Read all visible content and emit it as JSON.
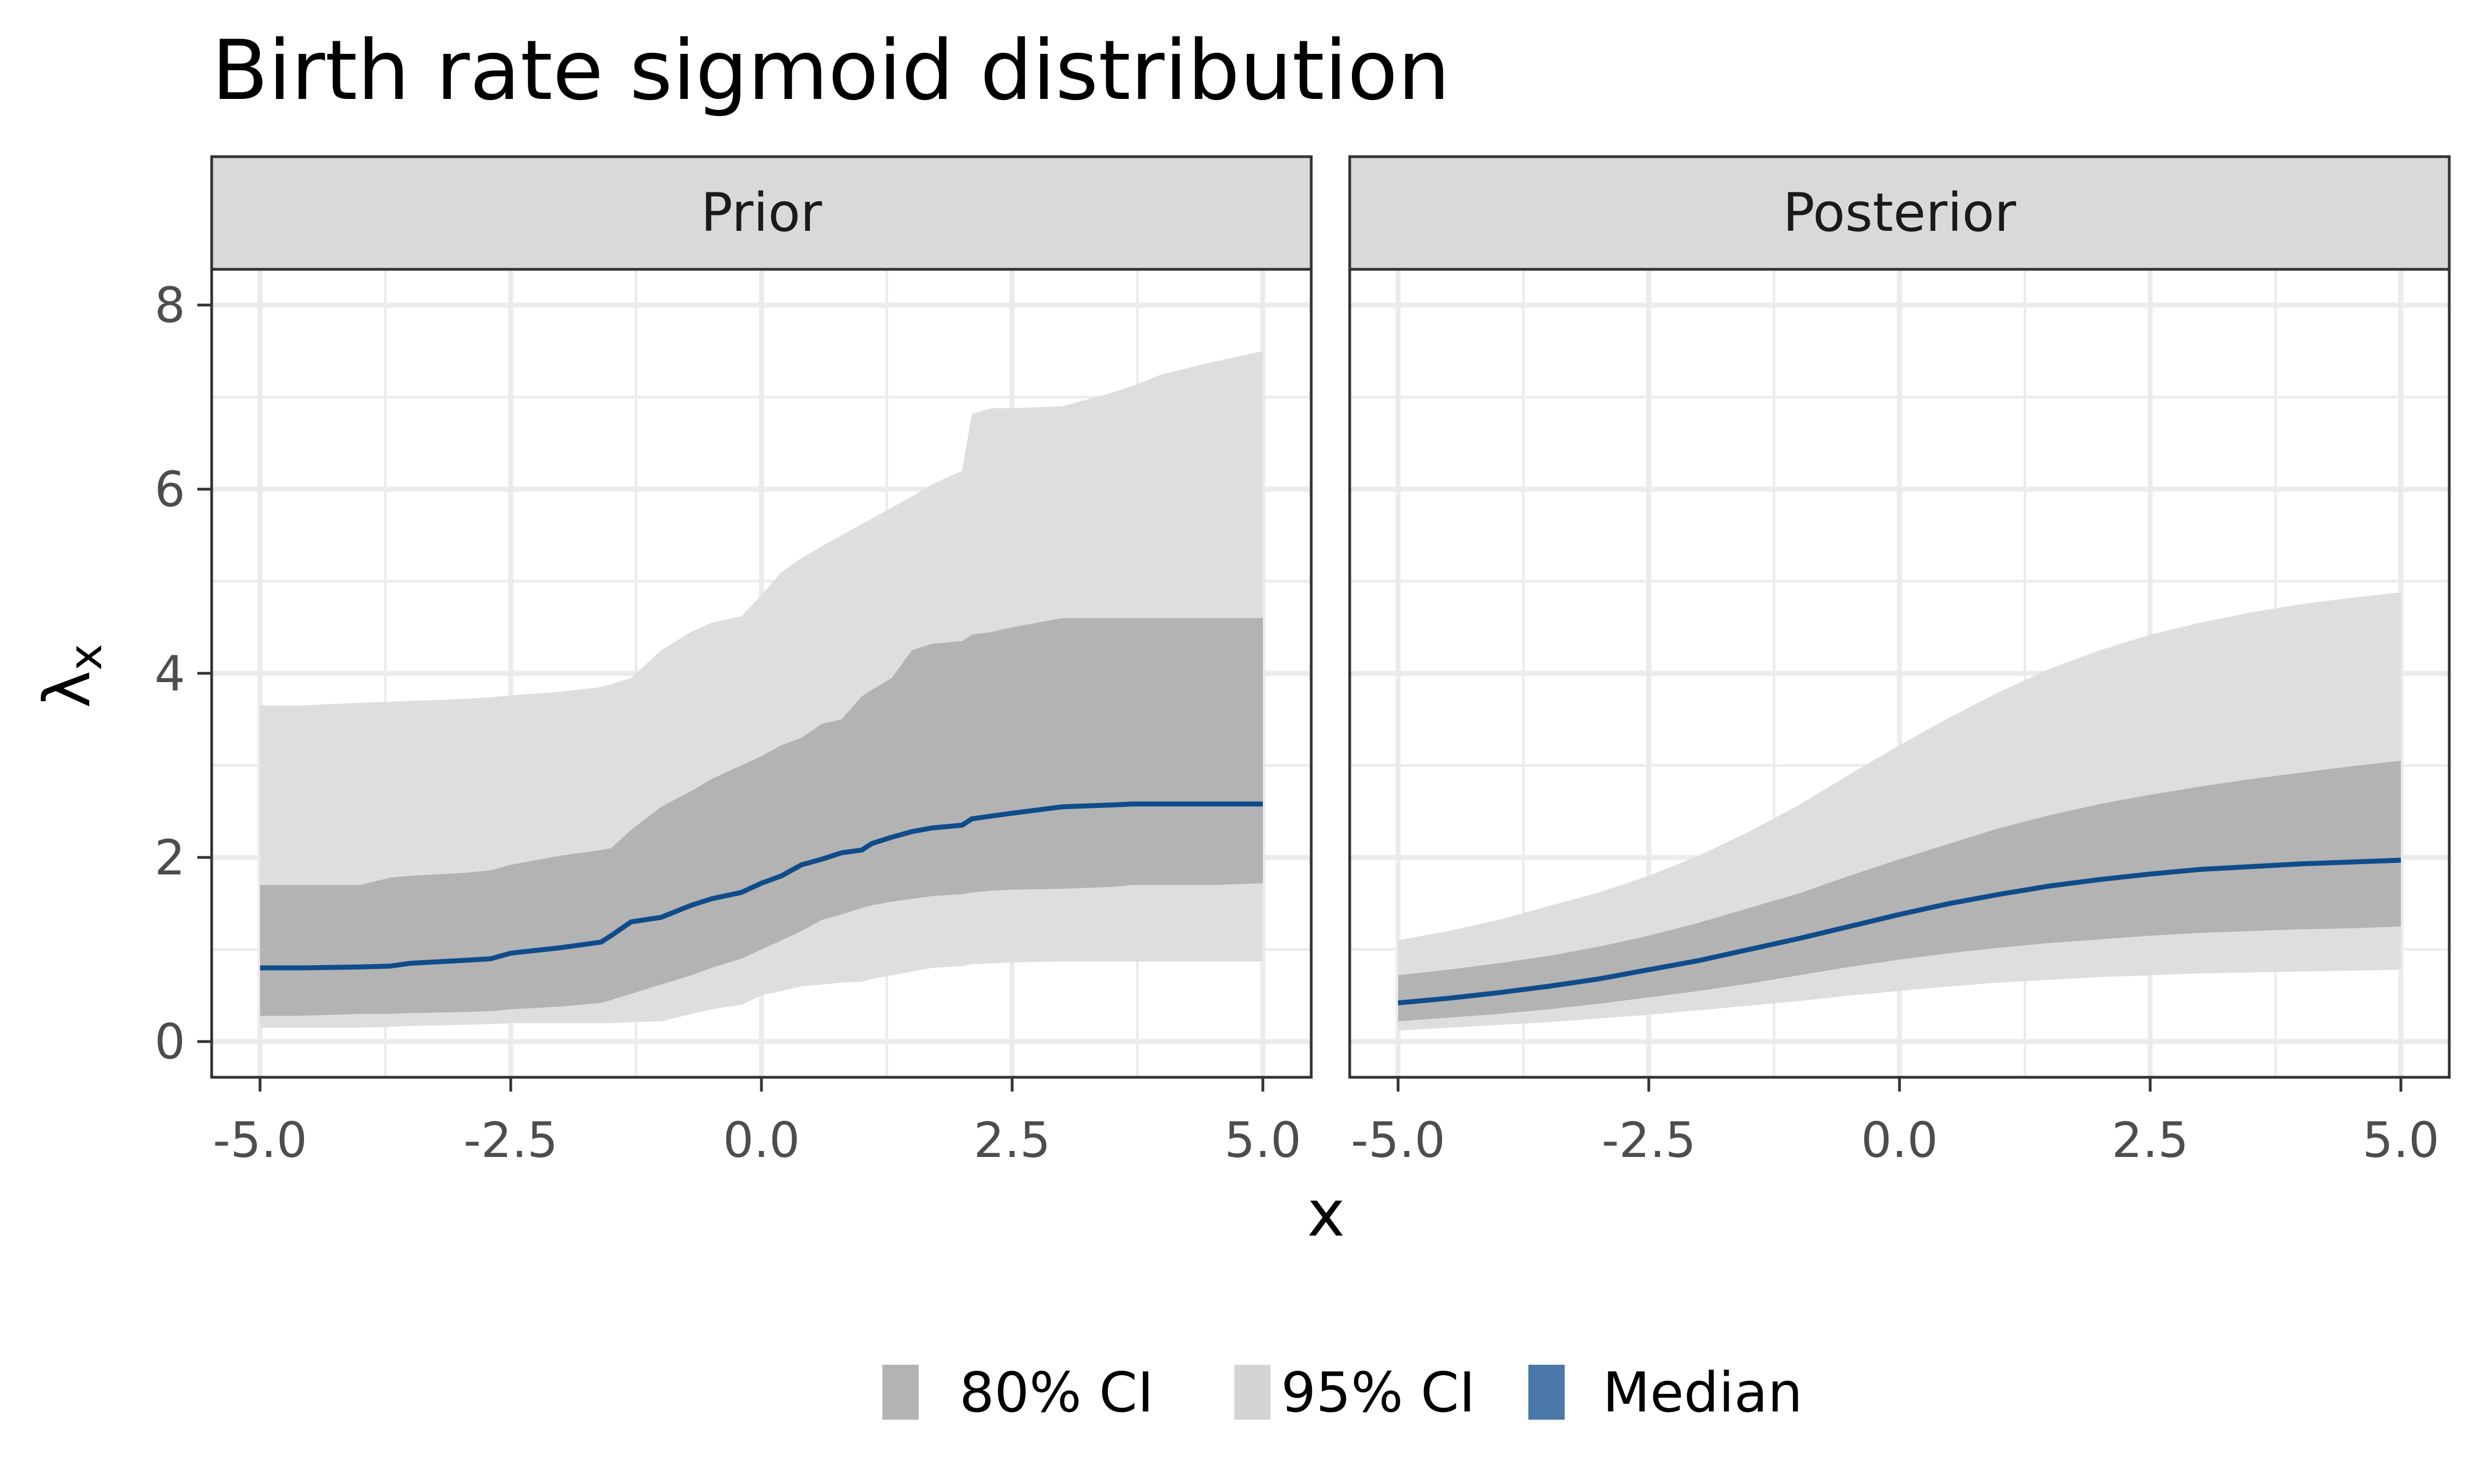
{
  "chart_data": {
    "type": "area",
    "title": "Birth rate sigmoid distribution",
    "xlabel": "x",
    "ylabel": "λ",
    "ylabel_subscript": "x",
    "xlim": [
      -5.0,
      5.0
    ],
    "ylim": [
      0,
      8
    ],
    "x_ticks": [
      -5.0,
      -2.5,
      0.0,
      2.5,
      5.0
    ],
    "x_tick_labels": [
      "-5.0",
      "-2.5",
      "0.0",
      "2.5",
      "5.0"
    ],
    "y_ticks": [
      0,
      2,
      4,
      6,
      8
    ],
    "y_tick_labels": [
      "0",
      "2",
      "4",
      "6",
      "8"
    ],
    "grid": true,
    "legend_position": "bottom",
    "legend": [
      {
        "label": "80% CI",
        "color": "#b3b3b3"
      },
      {
        "label": "95% CI",
        "color": "#d4d4d4"
      },
      {
        "label": "Median",
        "color": "#4a78a8"
      }
    ],
    "colors": {
      "ci80": "#b3b3b3",
      "ci95": "#dedede",
      "median": "#0f4c8a"
    },
    "panels": [
      {
        "name": "Prior",
        "x": [
          -5.0,
          -4.6,
          -4.0,
          -3.7,
          -3.5,
          -3.0,
          -2.7,
          -2.5,
          -2.0,
          -1.6,
          -1.5,
          -1.3,
          -1.0,
          -0.7,
          -0.5,
          -0.2,
          0.0,
          0.2,
          0.4,
          0.6,
          0.8,
          1.0,
          1.1,
          1.3,
          1.5,
          1.7,
          2.0,
          2.1,
          2.3,
          2.5,
          3.0,
          3.5,
          3.7,
          4.0,
          4.5,
          5.0
        ],
        "ci95_upper": [
          3.65,
          3.65,
          3.68,
          3.69,
          3.7,
          3.72,
          3.74,
          3.76,
          3.8,
          3.85,
          3.88,
          3.95,
          4.25,
          4.45,
          4.55,
          4.62,
          4.85,
          5.1,
          5.25,
          5.38,
          5.5,
          5.62,
          5.68,
          5.8,
          5.92,
          6.05,
          6.2,
          6.82,
          6.88,
          6.88,
          6.9,
          7.05,
          7.12,
          7.25,
          7.38,
          7.5
        ],
        "ci80_upper": [
          1.7,
          1.7,
          1.7,
          1.78,
          1.8,
          1.83,
          1.86,
          1.92,
          2.02,
          2.08,
          2.1,
          2.3,
          2.55,
          2.72,
          2.85,
          3.0,
          3.1,
          3.22,
          3.3,
          3.45,
          3.5,
          3.75,
          3.82,
          3.95,
          4.25,
          4.32,
          4.35,
          4.42,
          4.45,
          4.5,
          4.6,
          4.6,
          4.6,
          4.6,
          4.6,
          4.6
        ],
        "median": [
          0.8,
          0.8,
          0.81,
          0.82,
          0.85,
          0.88,
          0.9,
          0.96,
          1.02,
          1.08,
          1.15,
          1.3,
          1.35,
          1.48,
          1.55,
          1.62,
          1.72,
          1.8,
          1.92,
          1.98,
          2.05,
          2.08,
          2.15,
          2.22,
          2.28,
          2.32,
          2.35,
          2.42,
          2.45,
          2.48,
          2.55,
          2.57,
          2.58,
          2.58,
          2.58,
          2.58
        ],
        "ci80_lower": [
          0.28,
          0.28,
          0.3,
          0.3,
          0.31,
          0.32,
          0.33,
          0.35,
          0.38,
          0.42,
          0.45,
          0.52,
          0.62,
          0.72,
          0.8,
          0.9,
          1.0,
          1.1,
          1.2,
          1.32,
          1.38,
          1.45,
          1.48,
          1.52,
          1.55,
          1.58,
          1.6,
          1.62,
          1.64,
          1.65,
          1.66,
          1.68,
          1.7,
          1.7,
          1.7,
          1.72
        ],
        "ci95_lower": [
          0.15,
          0.15,
          0.15,
          0.16,
          0.17,
          0.18,
          0.19,
          0.2,
          0.2,
          0.2,
          0.2,
          0.21,
          0.22,
          0.3,
          0.35,
          0.4,
          0.5,
          0.55,
          0.6,
          0.62,
          0.64,
          0.65,
          0.68,
          0.72,
          0.76,
          0.8,
          0.82,
          0.84,
          0.85,
          0.86,
          0.87,
          0.87,
          0.87,
          0.87,
          0.87,
          0.87
        ]
      },
      {
        "name": "Posterior",
        "x": [
          -5.0,
          -4.5,
          -4.0,
          -3.5,
          -3.0,
          -2.5,
          -2.0,
          -1.5,
          -1.0,
          -0.5,
          0.0,
          0.5,
          1.0,
          1.5,
          2.0,
          2.5,
          3.0,
          3.5,
          4.0,
          4.5,
          5.0
        ],
        "ci95_upper": [
          1.1,
          1.2,
          1.32,
          1.47,
          1.62,
          1.8,
          2.02,
          2.28,
          2.57,
          2.9,
          3.22,
          3.52,
          3.8,
          4.05,
          4.25,
          4.42,
          4.55,
          4.66,
          4.75,
          4.82,
          4.88
        ],
        "ci80_upper": [
          0.72,
          0.78,
          0.85,
          0.93,
          1.03,
          1.15,
          1.29,
          1.45,
          1.61,
          1.8,
          1.98,
          2.15,
          2.32,
          2.46,
          2.58,
          2.68,
          2.77,
          2.85,
          2.92,
          2.99,
          3.05
        ],
        "median": [
          0.42,
          0.47,
          0.53,
          0.6,
          0.68,
          0.78,
          0.88,
          1.0,
          1.12,
          1.25,
          1.38,
          1.5,
          1.6,
          1.69,
          1.76,
          1.82,
          1.87,
          1.9,
          1.93,
          1.95,
          1.97
        ],
        "ci80_lower": [
          0.22,
          0.26,
          0.3,
          0.35,
          0.41,
          0.48,
          0.55,
          0.63,
          0.72,
          0.81,
          0.89,
          0.96,
          1.02,
          1.07,
          1.11,
          1.15,
          1.18,
          1.2,
          1.22,
          1.23,
          1.25
        ],
        "ci95_lower": [
          0.12,
          0.15,
          0.18,
          0.21,
          0.25,
          0.29,
          0.34,
          0.39,
          0.44,
          0.5,
          0.55,
          0.6,
          0.64,
          0.67,
          0.7,
          0.72,
          0.74,
          0.75,
          0.76,
          0.77,
          0.78
        ]
      }
    ]
  }
}
